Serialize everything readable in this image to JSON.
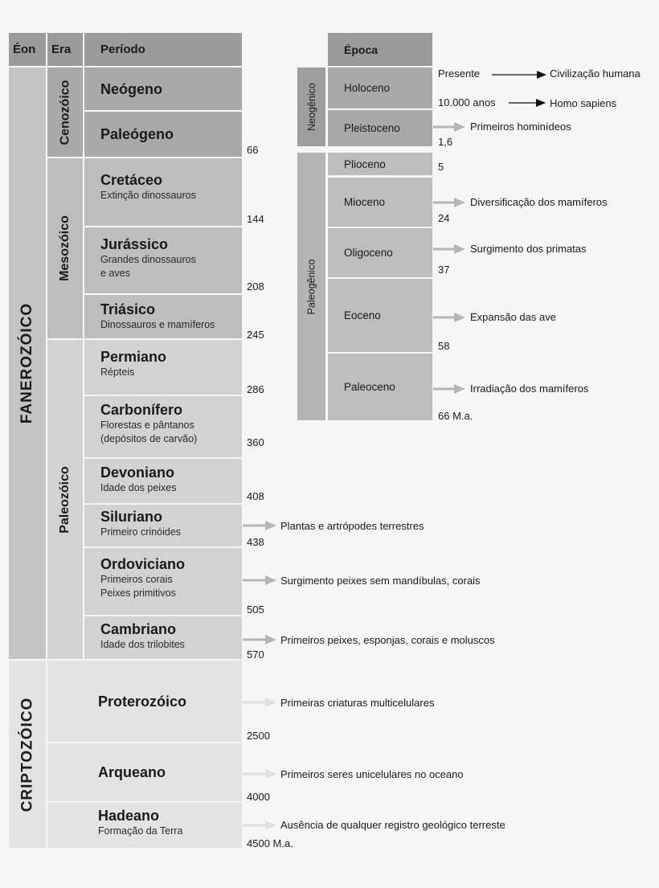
{
  "headers": {
    "eon": "Éon",
    "era": "Era",
    "period": "Período",
    "epoch": "Época"
  },
  "eons": {
    "phanerozoic": "FANEROZÓICO",
    "cryptozoic": "CRIPTOZÓICO"
  },
  "eras": {
    "cenozoic": "Cenozóico",
    "mesozoic": "Mesozóico",
    "paleozoic": "Paleozóico"
  },
  "periods": [
    {
      "name": "Neógeno",
      "desc": ""
    },
    {
      "name": "Paleógeno",
      "desc": "",
      "end": "66"
    },
    {
      "name": "Cretáceo",
      "desc": "Extinção dinossauros",
      "end": "144"
    },
    {
      "name": "Jurássico",
      "desc": "Grandes dinossauros",
      "desc2": "e aves",
      "end": "208"
    },
    {
      "name": "Triásico",
      "desc": "Dinossauros e mamíferos",
      "end": "245"
    },
    {
      "name": "Permiano",
      "desc": "Répteis",
      "end": "286"
    },
    {
      "name": "Carbonífero",
      "desc": "Florestas e pântanos",
      "desc2": "(depósitos de carvão)",
      "end": "360"
    },
    {
      "name": "Devoniano",
      "desc": "Idade dos peixes",
      "end": "408"
    },
    {
      "name": "Siluriano",
      "desc": "Primeiro crinóides",
      "end": "438",
      "event": "Plantas e artrópodes terrestres"
    },
    {
      "name": "Ordoviciano",
      "desc": "Primeiros corais",
      "desc2": "Peixes primitivos",
      "end": "505",
      "event": "Surgimento peixes sem mandíbulas, corais"
    },
    {
      "name": "Cambriano",
      "desc": "Idade dos trilobites",
      "end": "570",
      "event": "Primeiros peixes, esponjas, corais e moluscos"
    },
    {
      "name": "Proterozóico",
      "desc": "",
      "end": "2500",
      "event": "Primeiras criaturas multicelulares"
    },
    {
      "name": "Arqueano",
      "desc": "",
      "end": "4000",
      "event": "Primeiros seres unicelulares no oceano"
    },
    {
      "name": "Hadeano",
      "desc": "Formação da Terra",
      "end": "4500 M.a.",
      "event": "Ausência de qualquer registro geológico terreste"
    }
  ],
  "subperiods": {
    "neogenic": "Neogênico",
    "paleogenic": "Paleogênico"
  },
  "epochs": [
    {
      "name": "Holoceno"
    },
    {
      "name": "Pleistoceno",
      "end": "1,6",
      "event": "Primeiros hominídeos"
    },
    {
      "name": "Plioceno",
      "end": "5"
    },
    {
      "name": "Mioceno",
      "end": "24",
      "event": "Diversificação dos mamíferos"
    },
    {
      "name": "Oligoceno",
      "end": "37",
      "event": "Surgimento dos primatas"
    },
    {
      "name": "Eoceno",
      "end": "58",
      "event": "Expansão das ave"
    },
    {
      "name": "Paleoceno",
      "end": "66 M.a.",
      "event": "Irradiação dos mamíferos"
    }
  ],
  "holocene_notes": [
    {
      "time": "Presente",
      "event": "Civilização humana"
    },
    {
      "time": "10.000 anos",
      "event": "Homo sapiens"
    }
  ],
  "colors": {
    "background": "#f6f6f6",
    "header": "#9b9b9b",
    "cenozoic": "#a9a9a9",
    "mesozoic": "#bdbdbd",
    "paleozoic": "#d2d2d2",
    "phanerozoic": "#c4c4c4",
    "cryptozoic": "#e3e3e3",
    "arrow_gray": "#b5b5b5",
    "arrow_light": "#e0e0e0",
    "arrow_black": "#111111"
  }
}
